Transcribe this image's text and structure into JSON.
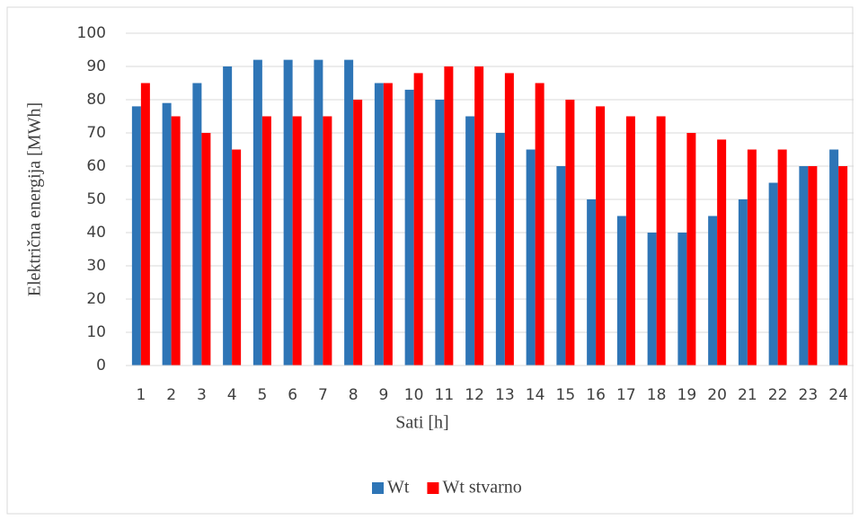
{
  "chart_data": {
    "type": "bar",
    "categories": [
      "1",
      "2",
      "3",
      "4",
      "5",
      "6",
      "7",
      "8",
      "9",
      "10",
      "11",
      "12",
      "13",
      "14",
      "15",
      "16",
      "17",
      "18",
      "19",
      "20",
      "21",
      "22",
      "23",
      "24"
    ],
    "series": [
      {
        "name": "Wt",
        "color": "#2e75b6",
        "values": [
          78,
          79,
          85,
          90,
          92,
          92,
          92,
          92,
          85,
          83,
          80,
          75,
          70,
          65,
          60,
          50,
          45,
          40,
          40,
          45,
          50,
          55,
          60,
          65
        ]
      },
      {
        "name": "Wt stvarno",
        "color": "#ff0000",
        "values": [
          85,
          75,
          70,
          65,
          75,
          75,
          75,
          80,
          85,
          88,
          90,
          90,
          88,
          85,
          80,
          78,
          75,
          75,
          70,
          68,
          65,
          65,
          60,
          60
        ]
      }
    ],
    "xlabel": "Sati [h]",
    "ylabel": "Električna energija [MWh]",
    "ylim": [
      0,
      100
    ],
    "yticks": [
      0,
      10,
      20,
      30,
      40,
      50,
      60,
      70,
      80,
      90,
      100
    ],
    "grid": true,
    "legend": "bottom"
  }
}
